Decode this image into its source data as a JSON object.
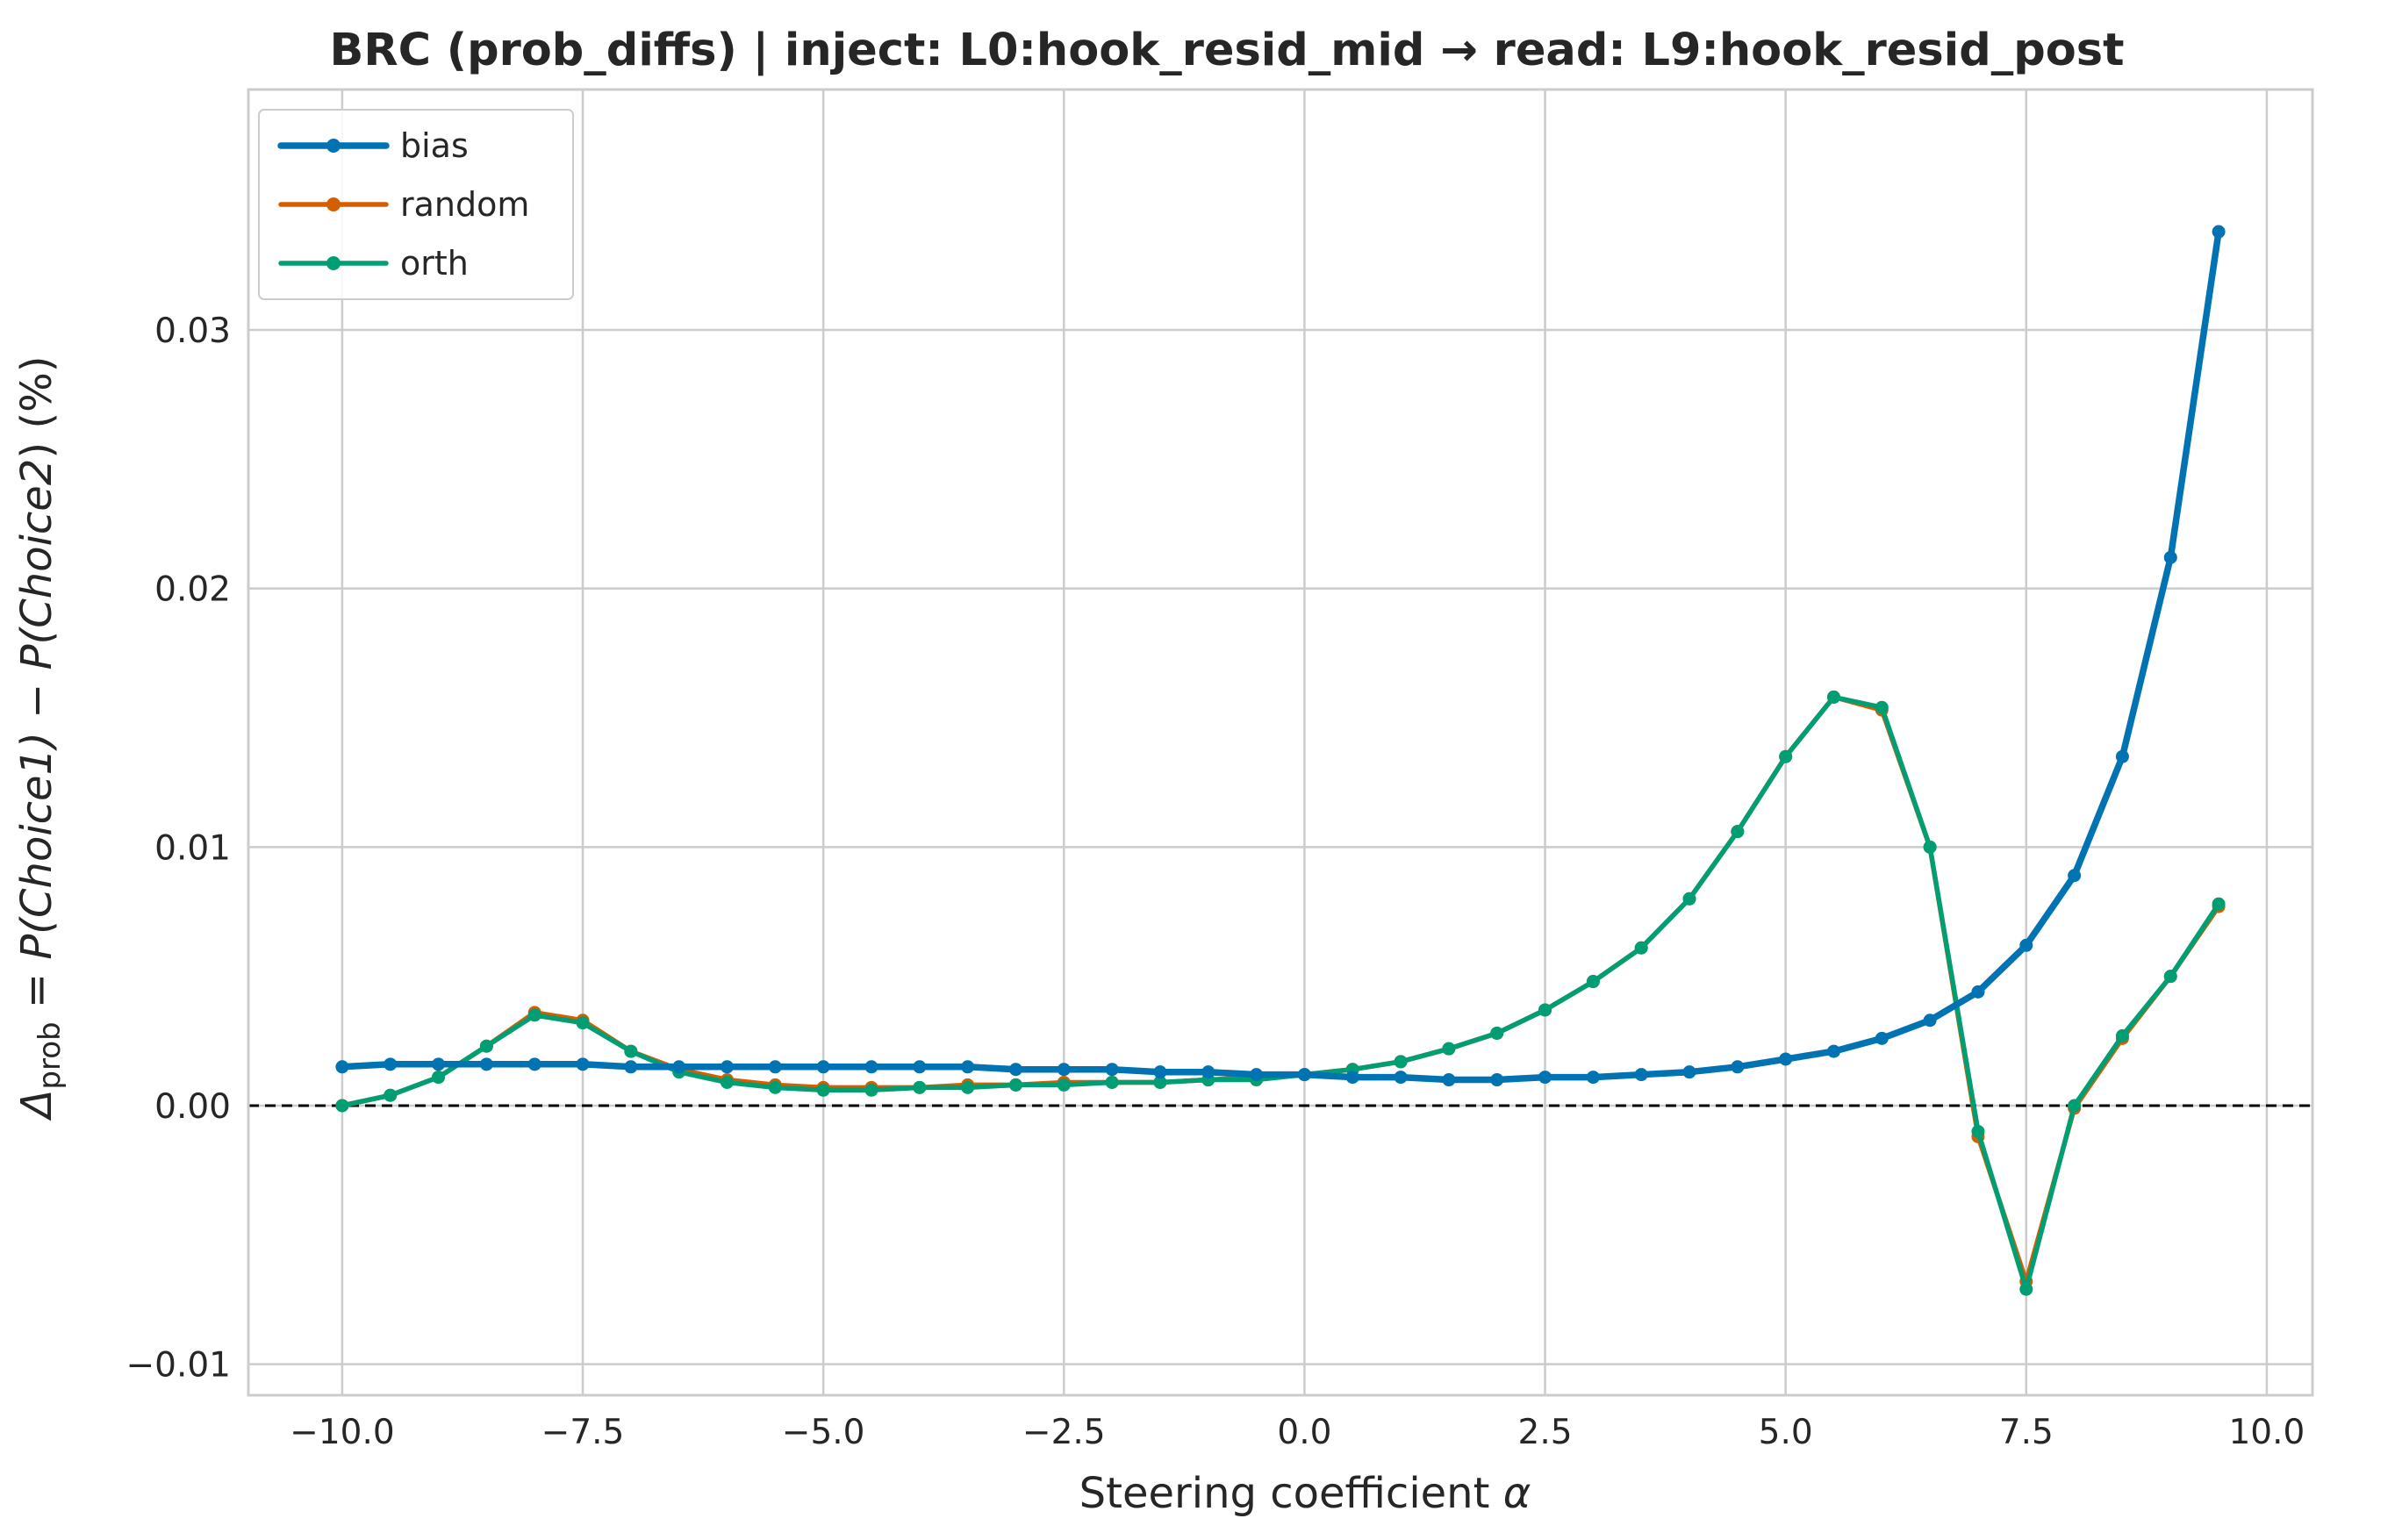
{
  "chart_data": {
    "type": "line",
    "title": "BRC (prob_diffs) | inject: L0:hook_resid_mid → read: L9:hook_resid_post",
    "xlabel": "Steering coefficient α",
    "ylabel": "Δprob = P(Choice1) − P(Choice2) (%)",
    "ylabel_parts": {
      "delta": "Δ",
      "sub": "prob",
      "eq": " = ",
      "p1": "P(",
      "c1": "Choice1",
      "mid": ") − P(",
      "c2": "Choice2",
      "end": ") (%)"
    },
    "xlabel_parts": {
      "text": "Steering coefficient ",
      "symbol": "α"
    },
    "xlim": [
      -10.975,
      10.475
    ],
    "ylim": [
      -0.0112,
      0.0393
    ],
    "xticks": [
      -10.0,
      -7.5,
      -5.0,
      -2.5,
      0.0,
      2.5,
      5.0,
      7.5,
      10.0
    ],
    "xtick_labels": [
      "−10.0",
      "−7.5",
      "−5.0",
      "−2.5",
      "0.0",
      "2.5",
      "5.0",
      "7.5",
      "10.0"
    ],
    "yticks": [
      -0.01,
      0.0,
      0.01,
      0.02,
      0.03
    ],
    "ytick_labels": [
      "−0.01",
      "0.00",
      "0.01",
      "0.02",
      "0.03"
    ],
    "grid": true,
    "legend_position": "top-left",
    "reference_line": {
      "y": 0.0,
      "style": "dashed",
      "color": "#000000"
    },
    "x": [
      -10.0,
      -9.5,
      -9.0,
      -8.5,
      -8.0,
      -7.5,
      -7.0,
      -6.5,
      -6.0,
      -5.5,
      -5.0,
      -4.5,
      -4.0,
      -3.5,
      -3.0,
      -2.5,
      -2.0,
      -1.5,
      -1.0,
      -0.5,
      0.0,
      0.5,
      1.0,
      1.5,
      2.0,
      2.5,
      3.0,
      3.5,
      4.0,
      4.5,
      5.0,
      5.5,
      6.0,
      6.5,
      7.0,
      7.5,
      8.0,
      8.5,
      9.0,
      9.5
    ],
    "series": [
      {
        "name": "random",
        "color": "#d55e00",
        "values": [
          0.0,
          0.0004,
          0.0011,
          0.0023,
          0.0036,
          0.0033,
          0.0021,
          0.0014,
          0.001,
          0.0008,
          0.0007,
          0.0007,
          0.0007,
          0.0008,
          0.0008,
          0.0009,
          0.0009,
          0.0009,
          0.001,
          0.0011,
          0.0012,
          0.0014,
          0.0017,
          0.0022,
          0.0028,
          0.0037,
          0.0048,
          0.0061,
          0.008,
          0.0106,
          0.0135,
          0.0158,
          0.0153,
          0.01,
          -0.0012,
          -0.0068,
          -0.0001,
          0.0026,
          0.005,
          0.0077
        ]
      },
      {
        "name": "orth",
        "color": "#029e73",
        "values": [
          0.0,
          0.0004,
          0.0011,
          0.0023,
          0.0035,
          0.0032,
          0.0021,
          0.0013,
          0.0009,
          0.0007,
          0.0006,
          0.0006,
          0.0007,
          0.0007,
          0.0008,
          0.0008,
          0.0009,
          0.0009,
          0.001,
          0.001,
          0.0012,
          0.0014,
          0.0017,
          0.0022,
          0.0028,
          0.0037,
          0.0048,
          0.0061,
          0.008,
          0.0106,
          0.0135,
          0.0158,
          0.0154,
          0.01,
          -0.001,
          -0.0071,
          0.0,
          0.0027,
          0.005,
          0.0078
        ]
      },
      {
        "name": "bias",
        "color": "#0173b2",
        "values": [
          0.0015,
          0.0016,
          0.0016,
          0.0016,
          0.0016,
          0.0016,
          0.0015,
          0.0015,
          0.0015,
          0.0015,
          0.0015,
          0.0015,
          0.0015,
          0.0015,
          0.0014,
          0.0014,
          0.0014,
          0.0013,
          0.0013,
          0.0012,
          0.0012,
          0.0011,
          0.0011,
          0.001,
          0.001,
          0.0011,
          0.0011,
          0.0012,
          0.0013,
          0.0015,
          0.0018,
          0.0021,
          0.0026,
          0.0033,
          0.0044,
          0.0062,
          0.0089,
          0.0135,
          0.0212,
          0.0338
        ]
      }
    ],
    "legend_order": [
      "bias",
      "random",
      "orth"
    ]
  }
}
